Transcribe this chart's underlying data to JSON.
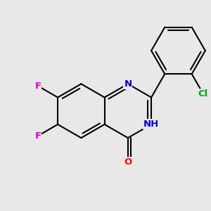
{
  "background_color": "#e8e8e8",
  "bond_color": "#000000",
  "bond_width": 1.5,
  "atom_colors": {
    "F": "#cc00cc",
    "N": "#0000cc",
    "O": "#ff0000",
    "Cl": "#00aa00"
  },
  "font_size": 9.5,
  "figsize": [
    3.0,
    3.0
  ],
  "dpi": 100,
  "bl": 0.75
}
